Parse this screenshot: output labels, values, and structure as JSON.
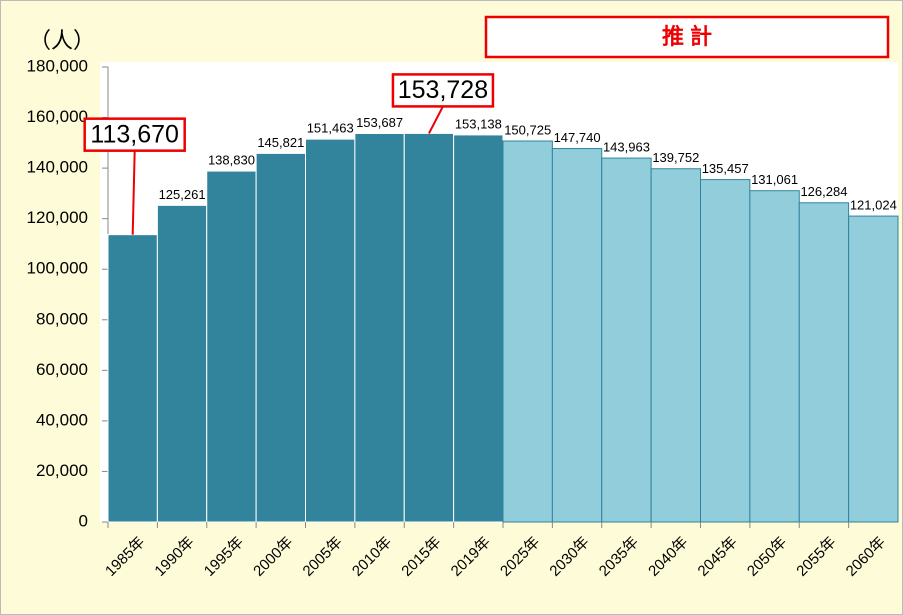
{
  "chart_data": {
    "type": "bar",
    "unit_label": "（人）",
    "annotation": "推 計",
    "categories": [
      "1985年",
      "1990年",
      "1995年",
      "2000年",
      "2005年",
      "2010年",
      "2015年",
      "2019年",
      "2025年",
      "2030年",
      "2035年",
      "2040年",
      "2045年",
      "2050年",
      "2055年",
      "2060年"
    ],
    "values": [
      113670,
      125261,
      138830,
      145821,
      151463,
      153687,
      153728,
      153138,
      150725,
      147740,
      143963,
      139752,
      135457,
      131061,
      126284,
      121024
    ],
    "value_labels": [
      "113,670",
      "125,261",
      "138,830",
      "145,821",
      "151,463",
      "153,687",
      "153,728",
      "153,138",
      "150,725",
      "147,740",
      "143,963",
      "139,752",
      "135,457",
      "131,061",
      "126,284",
      "121,024"
    ],
    "colors": [
      "#31849b",
      "#31849b",
      "#31849b",
      "#31849b",
      "#31849b",
      "#31849b",
      "#31849b",
      "#31849b",
      "#92cddc",
      "#92cddc",
      "#92cddc",
      "#92cddc",
      "#92cddc",
      "#92cddc",
      "#92cddc",
      "#92cddc"
    ],
    "callout_categories": [
      "1985年",
      "2015年"
    ],
    "ylim": [
      0,
      180000
    ],
    "yticks": [
      0,
      {
        "value": 20000,
        "label": "20,000"
      },
      {
        "value": 40000,
        "label": "40,000"
      },
      {
        "value": 60000,
        "label": "60,000"
      },
      {
        "value": 80000,
        "label": "80,000"
      },
      {
        "value": 100000,
        "label": "100,000"
      },
      {
        "value": 120000,
        "label": "120,000"
      },
      {
        "value": 140000,
        "label": "140,000"
      },
      {
        "value": 160000,
        "label": "160,000"
      },
      {
        "value": 180000,
        "label": "180,000"
      }
    ],
    "grid": false
  }
}
